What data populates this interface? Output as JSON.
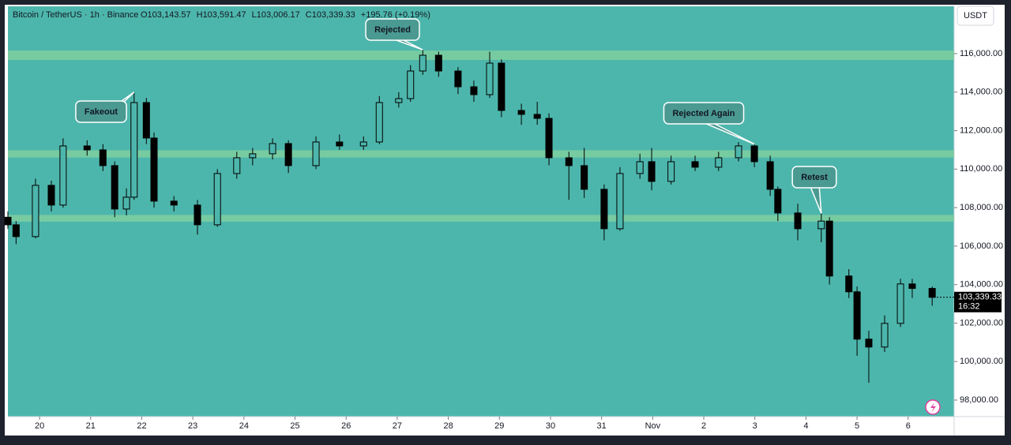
{
  "chart_data": {
    "type": "candlestick",
    "title": "Bitcoin / TetherUS · 1h · Binance",
    "ohlc_labels": [
      "O103,143.57",
      "H103,591.47",
      "L103,006.17",
      "C103,339.33"
    ],
    "change": "+195.76 (+0.19%)",
    "currency": "USDT",
    "x": [
      -0.62,
      -0.46,
      -0.08,
      0.23,
      0.46,
      0.93,
      1.24,
      1.47,
      1.7,
      1.85,
      2.09,
      2.24,
      2.63,
      3.09,
      3.48,
      3.86,
      4.17,
      4.56,
      4.87,
      5.41,
      5.87,
      6.34,
      6.65,
      7.03,
      7.26,
      7.5,
      7.81,
      8.19,
      8.5,
      8.81,
      9.04,
      9.43,
      9.74,
      9.97,
      10.36,
      10.66,
      11.05,
      11.36,
      11.75,
      11.98,
      12.36,
      12.83,
      13.29,
      13.68,
      13.99,
      14.3,
      14.45,
      14.84,
      15.3,
      15.46,
      15.84,
      16.0,
      16.23,
      16.54,
      16.85,
      17.08,
      17.47
    ],
    "open": [
      107500,
      107107,
      106493,
      109156,
      108132,
      111205,
      111000,
      110181,
      107927,
      108542,
      113459,
      111615,
      108337,
      108132,
      107107,
      109771,
      110591,
      110796,
      111328,
      110181,
      111410,
      111205,
      111410,
      113459,
      113664,
      115098,
      115918,
      115098,
      114279,
      113869,
      115508,
      113049,
      112844,
      112638,
      110591,
      110181,
      108951,
      106902,
      109771,
      110386,
      109361,
      110386,
      110100,
      110591,
      111205,
      110386,
      108951,
      107722,
      106902,
      107300,
      104444,
      103624,
      101165,
      100755,
      101985,
      104034,
      103800
    ],
    "high": [
      107800,
      107300,
      109500,
      109400,
      111600,
      111500,
      111300,
      110400,
      109000,
      114000,
      113700,
      111900,
      108600,
      108400,
      110000,
      110900,
      111100,
      111600,
      111500,
      111700,
      111800,
      111700,
      113800,
      114000,
      115400,
      116200,
      116100,
      115300,
      114600,
      116100,
      115700,
      113400,
      113500,
      112900,
      110900,
      111100,
      109200,
      110100,
      110800,
      111100,
      110700,
      110700,
      110900,
      111400,
      111300,
      110700,
      109100,
      108200,
      107700,
      107500,
      104800,
      103900,
      101600,
      102400,
      104300,
      104300,
      103900
    ],
    "low": [
      106900,
      106100,
      106400,
      107800,
      108000,
      110700,
      109900,
      107500,
      107600,
      108400,
      111300,
      108000,
      107800,
      106600,
      107000,
      109500,
      110200,
      110500,
      109800,
      110000,
      111000,
      111000,
      111300,
      113200,
      113500,
      114900,
      114800,
      113900,
      113500,
      113700,
      112700,
      112300,
      112300,
      110200,
      108400,
      108500,
      106300,
      106800,
      109500,
      108900,
      109200,
      109900,
      109900,
      110400,
      110100,
      108600,
      107300,
      106300,
      106200,
      104000,
      103300,
      100300,
      98900,
      100500,
      101800,
      103300,
      102900
    ],
    "close": [
      107107,
      106493,
      109156,
      108132,
      111205,
      111000,
      110181,
      107927,
      108542,
      113459,
      111615,
      108337,
      108132,
      107107,
      109771,
      110591,
      110796,
      111328,
      110181,
      111410,
      111205,
      111410,
      113459,
      113664,
      115098,
      115918,
      115098,
      114279,
      113869,
      115508,
      113049,
      112844,
      112638,
      110591,
      110181,
      108951,
      106902,
      109771,
      110386,
      109361,
      110386,
      110100,
      110591,
      111205,
      110386,
      108951,
      107722,
      106902,
      107300,
      104444,
      103624,
      101165,
      100755,
      101985,
      104034,
      103800,
      103339
    ],
    "up_color": "#4db6ac",
    "down_color": "#000000",
    "ylim": [
      97140,
      118460
    ],
    "yticks": [
      {
        "value": 98000,
        "label": "98,000.00"
      },
      {
        "value": 100000,
        "label": "100,000.00"
      },
      {
        "value": 102000,
        "label": "102,000.00"
      },
      {
        "value": 104000,
        "label": "104,000.00"
      },
      {
        "value": 106000,
        "label": "106,000.00"
      },
      {
        "value": 108000,
        "label": "108,000.00"
      },
      {
        "value": 110000,
        "label": "110,000.00"
      },
      {
        "value": 112000,
        "label": "112,000.00"
      },
      {
        "value": 114000,
        "label": "114,000.00"
      },
      {
        "value": 116000,
        "label": "116,000.00"
      }
    ],
    "xlim": [
      -0.62,
      17.9
    ],
    "xticks": [
      {
        "value": 0,
        "label": "20"
      },
      {
        "value": 1,
        "label": "21"
      },
      {
        "value": 2,
        "label": "22"
      },
      {
        "value": 3,
        "label": "23"
      },
      {
        "value": 4,
        "label": "24"
      },
      {
        "value": 5,
        "label": "25"
      },
      {
        "value": 6,
        "label": "26"
      },
      {
        "value": 7,
        "label": "27"
      },
      {
        "value": 8,
        "label": "28"
      },
      {
        "value": 9,
        "label": "29"
      },
      {
        "value": 10,
        "label": "30"
      },
      {
        "value": 11,
        "label": "31"
      },
      {
        "value": 12,
        "label": "Nov"
      },
      {
        "value": 13,
        "label": "2"
      },
      {
        "value": 14,
        "label": "3"
      },
      {
        "value": 15,
        "label": "4"
      },
      {
        "value": 16,
        "label": "5"
      },
      {
        "value": 17,
        "label": "6"
      }
    ],
    "zones": [
      [
        115670,
        116160
      ],
      [
        110600,
        110980
      ],
      [
        107270,
        107620
      ]
    ],
    "zone_color": "#7fcf9f",
    "annotations": [
      "Fakeout",
      "Rejected",
      "Rejected Again",
      "Retest"
    ],
    "last_price": {
      "value": 103339.33,
      "label": "103,339.33"
    },
    "countdown": "16:32"
  }
}
